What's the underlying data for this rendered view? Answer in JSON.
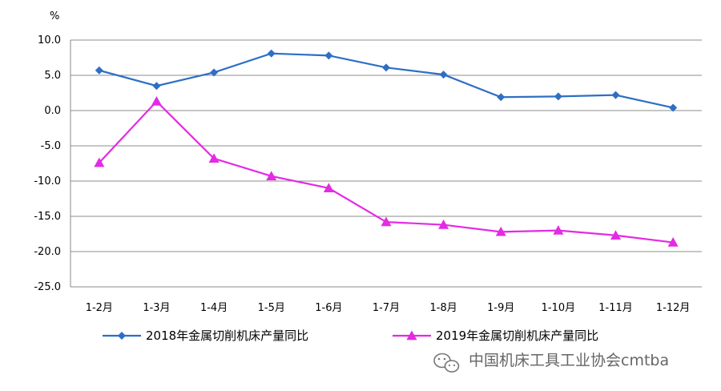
{
  "chart_data": {
    "type": "line",
    "title": "",
    "xlabel": "",
    "ylabel": "%",
    "categories": [
      "1-2月",
      "1-3月",
      "1-4月",
      "1-5月",
      "1-6月",
      "1-7月",
      "1-8月",
      "1-9月",
      "1-10月",
      "1-11月",
      "1-12月"
    ],
    "ylim": [
      -25,
      10
    ],
    "yticks": [
      "10.0",
      "5.0",
      "0.0",
      "-5.0",
      "-10.0",
      "-15.0",
      "-20.0",
      "-25.0"
    ],
    "grid": true,
    "legend_position": "bottom",
    "series": [
      {
        "name": "2018年金属切削机床产量同比",
        "color": "#2e6fc5",
        "marker": "diamond",
        "values": [
          5.7,
          3.5,
          5.4,
          8.1,
          7.8,
          6.1,
          5.1,
          1.9,
          2.0,
          2.2,
          0.4
        ]
      },
      {
        "name": "2019年金属切削机床产量同比",
        "color": "#e42ae4",
        "marker": "triangle",
        "values": [
          -7.4,
          1.3,
          -6.8,
          -9.3,
          -11.0,
          -15.8,
          -16.2,
          -17.2,
          -17.0,
          -17.7,
          -18.7
        ]
      }
    ]
  },
  "watermark": {
    "text": "中国机床工具工业协会cmtba",
    "icon": "wechat-icon"
  }
}
